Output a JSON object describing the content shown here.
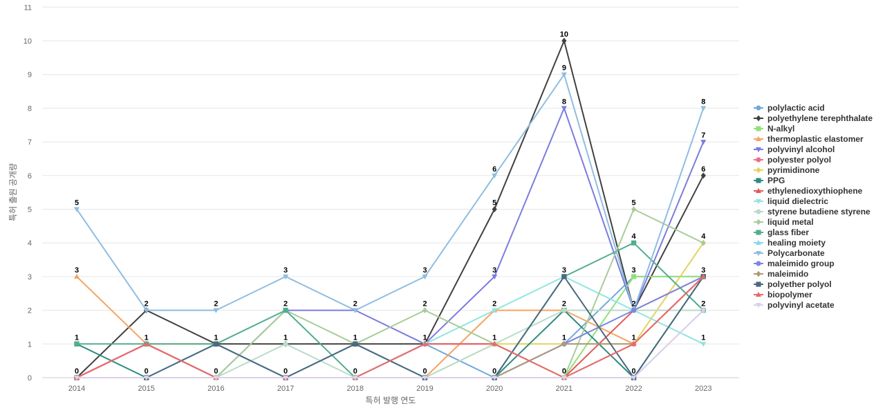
{
  "chart_data": {
    "type": "line",
    "xlabel": "특허 발행 연도",
    "ylabel": "특허 출원 공개량",
    "ylim": [
      0,
      11
    ],
    "yticks": [
      0,
      1,
      2,
      3,
      4,
      5,
      6,
      7,
      8,
      9,
      10,
      11
    ],
    "categories": [
      "2014",
      "2015",
      "2016",
      "2017",
      "2018",
      "2019",
      "2020",
      "2021",
      "2022",
      "2023"
    ],
    "grid": "horizontal",
    "legend_position": "right",
    "series": [
      {
        "name": "polylactic acid",
        "color": "#6fa8dc",
        "marker": "circle",
        "values": [
          0,
          1,
          0,
          0,
          0,
          1,
          0,
          1,
          3,
          3
        ]
      },
      {
        "name": "polyethylene terephthalate",
        "color": "#404040",
        "marker": "diamond",
        "values": [
          0,
          2,
          1,
          1,
          1,
          1,
          5,
          10,
          2,
          6
        ]
      },
      {
        "name": "N-alkyl",
        "color": "#93e07a",
        "marker": "square",
        "values": [
          0,
          0,
          0,
          0,
          0,
          0,
          0,
          0,
          3,
          3
        ]
      },
      {
        "name": "thermoplastic elastomer",
        "color": "#f4a460",
        "marker": "triangle-up",
        "values": [
          3,
          1,
          1,
          0,
          0,
          0,
          2,
          2,
          1,
          3
        ]
      },
      {
        "name": "polyvinyl alcohol",
        "color": "#7b7be0",
        "marker": "triangle-down",
        "values": [
          0,
          1,
          0,
          2,
          2,
          1,
          3,
          8,
          2,
          7
        ]
      },
      {
        "name": "polyester polyol",
        "color": "#f06b8a",
        "marker": "circle",
        "values": [
          0,
          1,
          0,
          0,
          0,
          1,
          1,
          0,
          1,
          3
        ]
      },
      {
        "name": "pyrimidinone",
        "color": "#e5d25e",
        "marker": "diamond",
        "values": [
          0,
          0,
          0,
          0,
          0,
          0,
          1,
          1,
          1,
          4
        ]
      },
      {
        "name": "PPG",
        "color": "#2e8b80",
        "marker": "square",
        "values": [
          1,
          0,
          1,
          0,
          1,
          0,
          0,
          2,
          0,
          3
        ]
      },
      {
        "name": "ethylenedioxythiophene",
        "color": "#e05a5a",
        "marker": "triangle-up",
        "values": [
          0,
          1,
          0,
          0,
          0,
          1,
          1,
          0,
          2,
          3
        ]
      },
      {
        "name": "liquid dielectric",
        "color": "#8ee6e0",
        "marker": "triangle-down",
        "values": [
          0,
          0,
          1,
          0,
          0,
          1,
          2,
          3,
          2,
          1
        ]
      },
      {
        "name": "styrene butadiene styrene",
        "color": "#b8dcc8",
        "marker": "circle",
        "values": [
          0,
          0,
          0,
          1,
          0,
          0,
          1,
          2,
          2,
          2
        ]
      },
      {
        "name": "liquid metal",
        "color": "#a8cc98",
        "marker": "diamond",
        "values": [
          0,
          0,
          0,
          2,
          1,
          2,
          1,
          0,
          5,
          4
        ]
      },
      {
        "name": "glass fiber",
        "color": "#52ad90",
        "marker": "square",
        "values": [
          1,
          1,
          1,
          2,
          0,
          0,
          0,
          3,
          4,
          2
        ]
      },
      {
        "name": "healing moiety",
        "color": "#85d8ea",
        "marker": "triangle-up",
        "values": [
          0,
          0,
          0,
          0,
          0,
          0,
          0,
          0,
          0,
          2
        ]
      },
      {
        "name": "Polycarbonate",
        "color": "#8ebde0",
        "marker": "triangle-down",
        "values": [
          5,
          2,
          2,
          3,
          2,
          3,
          6,
          9,
          2,
          8
        ]
      },
      {
        "name": "maleimido group",
        "color": "#7a86e0",
        "marker": "circle",
        "values": [
          0,
          0,
          0,
          0,
          0,
          0,
          0,
          1,
          2,
          3
        ]
      },
      {
        "name": "maleimido",
        "color": "#b09878",
        "marker": "diamond",
        "values": [
          0,
          0,
          0,
          0,
          0,
          0,
          0,
          1,
          1,
          3
        ]
      },
      {
        "name": "polyether polyol",
        "color": "#4a6a80",
        "marker": "square",
        "values": [
          0,
          0,
          1,
          0,
          1,
          0,
          0,
          3,
          0,
          3
        ]
      },
      {
        "name": "biopolymer",
        "color": "#e86a6a",
        "marker": "triangle-up",
        "values": [
          0,
          1,
          0,
          0,
          0,
          1,
          1,
          0,
          1,
          3
        ]
      },
      {
        "name": "polyvinyl acetate",
        "color": "#dcd0e8",
        "marker": "triangle-down",
        "values": [
          0,
          0,
          0,
          0,
          0,
          0,
          0,
          0,
          0,
          2
        ]
      }
    ],
    "data_labels": [
      {
        "x": "2014",
        "value": 5
      },
      {
        "x": "2014",
        "value": 3
      },
      {
        "x": "2014",
        "value": 1
      },
      {
        "x": "2014",
        "value": 0
      },
      {
        "x": "2015",
        "value": 2
      },
      {
        "x": "2015",
        "value": 1
      },
      {
        "x": "2015",
        "value": 0
      },
      {
        "x": "2016",
        "value": 2
      },
      {
        "x": "2016",
        "value": 1
      },
      {
        "x": "2016",
        "value": 0
      },
      {
        "x": "2017",
        "value": 3
      },
      {
        "x": "2017",
        "value": 2
      },
      {
        "x": "2017",
        "value": 1
      },
      {
        "x": "2017",
        "value": 0
      },
      {
        "x": "2018",
        "value": 2
      },
      {
        "x": "2018",
        "value": 1
      },
      {
        "x": "2018",
        "value": 0
      },
      {
        "x": "2019",
        "value": 3
      },
      {
        "x": "2019",
        "value": 2
      },
      {
        "x": "2019",
        "value": 1
      },
      {
        "x": "2019",
        "value": 0
      },
      {
        "x": "2020",
        "value": 6
      },
      {
        "x": "2020",
        "value": 5
      },
      {
        "x": "2020",
        "value": 3
      },
      {
        "x": "2020",
        "value": 2
      },
      {
        "x": "2020",
        "value": 1
      },
      {
        "x": "2020",
        "value": 0
      },
      {
        "x": "2021",
        "value": 10
      },
      {
        "x": "2021",
        "value": 9
      },
      {
        "x": "2021",
        "value": 8
      },
      {
        "x": "2021",
        "value": 3
      },
      {
        "x": "2021",
        "value": 2
      },
      {
        "x": "2021",
        "value": 1
      },
      {
        "x": "2021",
        "value": 0
      },
      {
        "x": "2022",
        "value": 5
      },
      {
        "x": "2022",
        "value": 4
      },
      {
        "x": "2022",
        "value": 3
      },
      {
        "x": "2022",
        "value": 2
      },
      {
        "x": "2022",
        "value": 1
      },
      {
        "x": "2022",
        "value": 0
      },
      {
        "x": "2023",
        "value": 8
      },
      {
        "x": "2023",
        "value": 7
      },
      {
        "x": "2023",
        "value": 6
      },
      {
        "x": "2023",
        "value": 4
      },
      {
        "x": "2023",
        "value": 3
      },
      {
        "x": "2023",
        "value": 2
      },
      {
        "x": "2023",
        "value": 1
      }
    ]
  }
}
